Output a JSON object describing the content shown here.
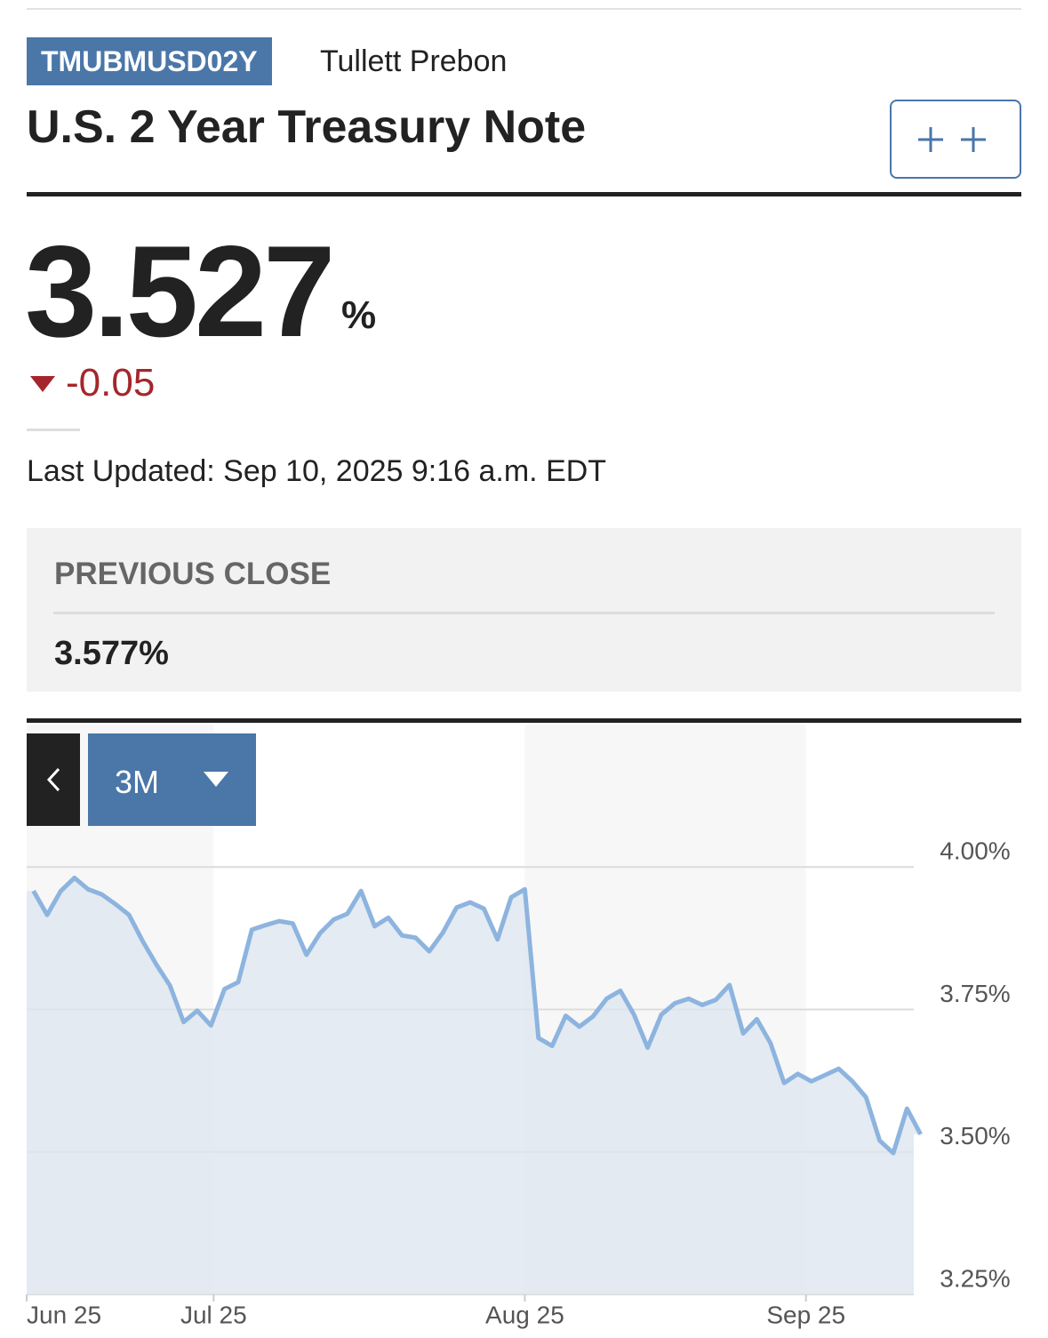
{
  "header": {
    "ticker": "TMUBMUSD02Y",
    "source": "Tullett Prebon",
    "title": "U.S. 2 Year Treasury Note"
  },
  "quote": {
    "price": "3.527",
    "unit": "%",
    "change": "-0.05",
    "updated": "Last Updated: Sep 10, 2025 9:16 a.m. EDT"
  },
  "previous_close": {
    "label": "PREVIOUS CLOSE",
    "value": "3.577%"
  },
  "range": "3M",
  "chart_data": {
    "type": "line",
    "color": "#8db4df",
    "fill": "#dde6ef",
    "values": [
      3.958,
      3.916,
      3.958,
      3.981,
      3.961,
      3.952,
      3.935,
      3.916,
      3.87,
      3.829,
      3.792,
      3.728,
      3.748,
      3.722,
      3.786,
      3.798,
      3.89,
      3.898,
      3.905,
      3.901,
      3.846,
      3.884,
      3.908,
      3.918,
      3.958,
      3.896,
      3.911,
      3.88,
      3.876,
      3.852,
      3.885,
      3.929,
      3.938,
      3.927,
      3.873,
      3.947,
      3.961,
      3.7,
      3.686,
      3.739,
      3.72,
      3.738,
      3.769,
      3.783,
      3.741,
      3.683,
      3.741,
      3.761,
      3.769,
      3.758,
      3.767,
      3.793,
      3.708,
      3.733,
      3.691,
      3.621,
      3.637,
      3.624,
      3.635,
      3.646,
      3.624,
      3.596,
      3.52,
      3.498,
      3.576,
      3.531
    ],
    "xlim": [
      0,
      65
    ],
    "xticks": [
      {
        "value": 0,
        "label": "Jun 25"
      },
      {
        "value": 13.7,
        "label": "Jul 25"
      },
      {
        "value": 36.5,
        "label": "Aug 25"
      },
      {
        "value": 57.1,
        "label": "Sep 25"
      }
    ],
    "ylim": [
      3.25,
      4.25
    ],
    "yticks": [
      {
        "value": 3.25,
        "label": "3.25%"
      },
      {
        "value": 3.5,
        "label": "3.50%"
      },
      {
        "value": 3.75,
        "label": "3.75%"
      },
      {
        "value": 4.0,
        "label": "4.00%"
      }
    ],
    "grid": true
  }
}
